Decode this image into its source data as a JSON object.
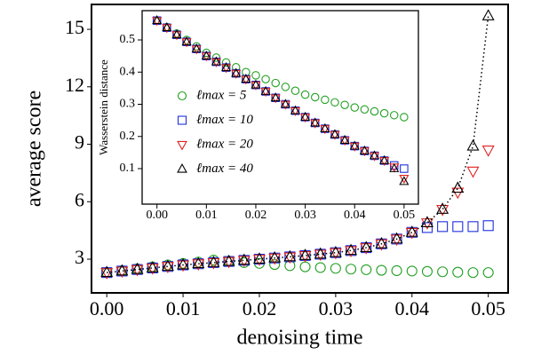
{
  "chart_data": [
    {
      "type": "scatter",
      "xlabel": "denoising time",
      "ylabel": "average score",
      "xlim": [
        -0.002,
        0.0526
      ],
      "ylim": [
        1.24,
        16.3
      ],
      "xticks": [
        {
          "value": 0,
          "label": "0.00"
        },
        {
          "value": 0.01,
          "label": "0.01"
        },
        {
          "value": 0.02,
          "label": "0.02"
        },
        {
          "value": 0.03,
          "label": "0.03"
        },
        {
          "value": 0.04,
          "label": "0.04"
        },
        {
          "value": 0.05,
          "label": "0.05"
        }
      ],
      "yticks": [
        3,
        6,
        9,
        12,
        15
      ],
      "x": [
        0,
        0.002,
        0.004,
        0.006,
        0.008,
        0.01,
        0.012,
        0.014,
        0.016,
        0.018,
        0.02,
        0.022,
        0.024,
        0.026,
        0.028,
        0.03,
        0.032,
        0.034,
        0.036,
        0.038,
        0.04,
        0.042,
        0.044,
        0.046,
        0.048,
        0.05
      ],
      "series": [
        {
          "color": "#22a022",
          "marker": "circle",
          "values": [
            2.3,
            2.4,
            2.5,
            2.6,
            2.7,
            2.78,
            2.85,
            2.95,
            2.9,
            2.82,
            2.78,
            2.72,
            2.66,
            2.6,
            2.56,
            2.52,
            2.48,
            2.45,
            2.42,
            2.4,
            2.38,
            2.36,
            2.34,
            2.32,
            2.3,
            2.3
          ]
        },
        {
          "color": "#1f2fe0",
          "marker": "square",
          "values": [
            2.3,
            2.38,
            2.46,
            2.54,
            2.62,
            2.7,
            2.76,
            2.82,
            2.88,
            2.94,
            3.0,
            3.06,
            3.12,
            3.19,
            3.26,
            3.34,
            3.45,
            3.6,
            3.8,
            4.05,
            4.4,
            4.65,
            4.7,
            4.7,
            4.7,
            4.75
          ]
        },
        {
          "color": "#e02020",
          "marker": "triangle-down",
          "values": [
            2.3,
            2.38,
            2.46,
            2.54,
            2.62,
            2.7,
            2.76,
            2.82,
            2.88,
            2.94,
            3.0,
            3.06,
            3.12,
            3.19,
            3.26,
            3.34,
            3.45,
            3.6,
            3.8,
            4.05,
            4.4,
            4.9,
            5.6,
            6.5,
            7.6,
            8.7
          ]
        },
        {
          "color": "#000000",
          "marker": "triangle-up",
          "linestyle": "dotted",
          "values": [
            2.3,
            2.38,
            2.46,
            2.54,
            2.62,
            2.7,
            2.76,
            2.82,
            2.88,
            2.94,
            3.0,
            3.06,
            3.12,
            3.19,
            3.26,
            3.34,
            3.45,
            3.6,
            3.8,
            4.05,
            4.4,
            4.9,
            5.6,
            6.7,
            8.9,
            15.7
          ]
        }
      ]
    },
    {
      "type": "scatter",
      "ylabel": "Wasserstein distance",
      "xlim": [
        -0.003,
        0.0529
      ],
      "ylim": [
        -0.0103,
        0.591
      ],
      "xticks": [
        {
          "value": 0,
          "label": "0.00"
        },
        {
          "value": 0.01,
          "label": "0.01"
        },
        {
          "value": 0.02,
          "label": "0.02"
        },
        {
          "value": 0.03,
          "label": "0.03"
        },
        {
          "value": 0.04,
          "label": "0.04"
        },
        {
          "value": 0.05,
          "label": "0.05"
        }
      ],
      "yticks": [
        0.1,
        0.2,
        0.3,
        0.4,
        0.5
      ],
      "x": [
        0,
        0.002,
        0.004,
        0.006,
        0.008,
        0.01,
        0.012,
        0.014,
        0.016,
        0.018,
        0.02,
        0.022,
        0.024,
        0.026,
        0.028,
        0.03,
        0.032,
        0.034,
        0.036,
        0.038,
        0.04,
        0.042,
        0.044,
        0.046,
        0.048,
        0.05
      ],
      "series": [
        {
          "name": "ℓmax = 5",
          "color": "#22a022",
          "marker": "circle",
          "values": [
            0.56,
            0.54,
            0.52,
            0.5,
            0.48,
            0.46,
            0.445,
            0.43,
            0.415,
            0.4,
            0.39,
            0.378,
            0.366,
            0.354,
            0.342,
            0.33,
            0.322,
            0.314,
            0.306,
            0.298,
            0.29,
            0.284,
            0.278,
            0.272,
            0.266,
            0.26
          ]
        },
        {
          "name": "ℓmax = 10",
          "color": "#1f2fe0",
          "marker": "square",
          "values": [
            0.56,
            0.538,
            0.516,
            0.494,
            0.472,
            0.45,
            0.432,
            0.414,
            0.396,
            0.378,
            0.36,
            0.34,
            0.32,
            0.3,
            0.28,
            0.26,
            0.242,
            0.224,
            0.206,
            0.188,
            0.17,
            0.155,
            0.14,
            0.125,
            0.11,
            0.1
          ]
        },
        {
          "name": "ℓmax = 20",
          "color": "#e02020",
          "marker": "triangle-down",
          "values": [
            0.56,
            0.538,
            0.516,
            0.494,
            0.472,
            0.45,
            0.432,
            0.414,
            0.396,
            0.378,
            0.36,
            0.34,
            0.32,
            0.3,
            0.28,
            0.26,
            0.242,
            0.224,
            0.206,
            0.188,
            0.17,
            0.155,
            0.14,
            0.125,
            0.105,
            0.07
          ]
        },
        {
          "name": "ℓmax = 40",
          "color": "#000000",
          "marker": "triangle-up",
          "values": [
            0.56,
            0.538,
            0.516,
            0.494,
            0.472,
            0.45,
            0.432,
            0.414,
            0.396,
            0.378,
            0.36,
            0.34,
            0.32,
            0.3,
            0.28,
            0.26,
            0.242,
            0.224,
            0.206,
            0.188,
            0.17,
            0.155,
            0.14,
            0.125,
            0.1,
            0.06
          ]
        }
      ]
    }
  ]
}
